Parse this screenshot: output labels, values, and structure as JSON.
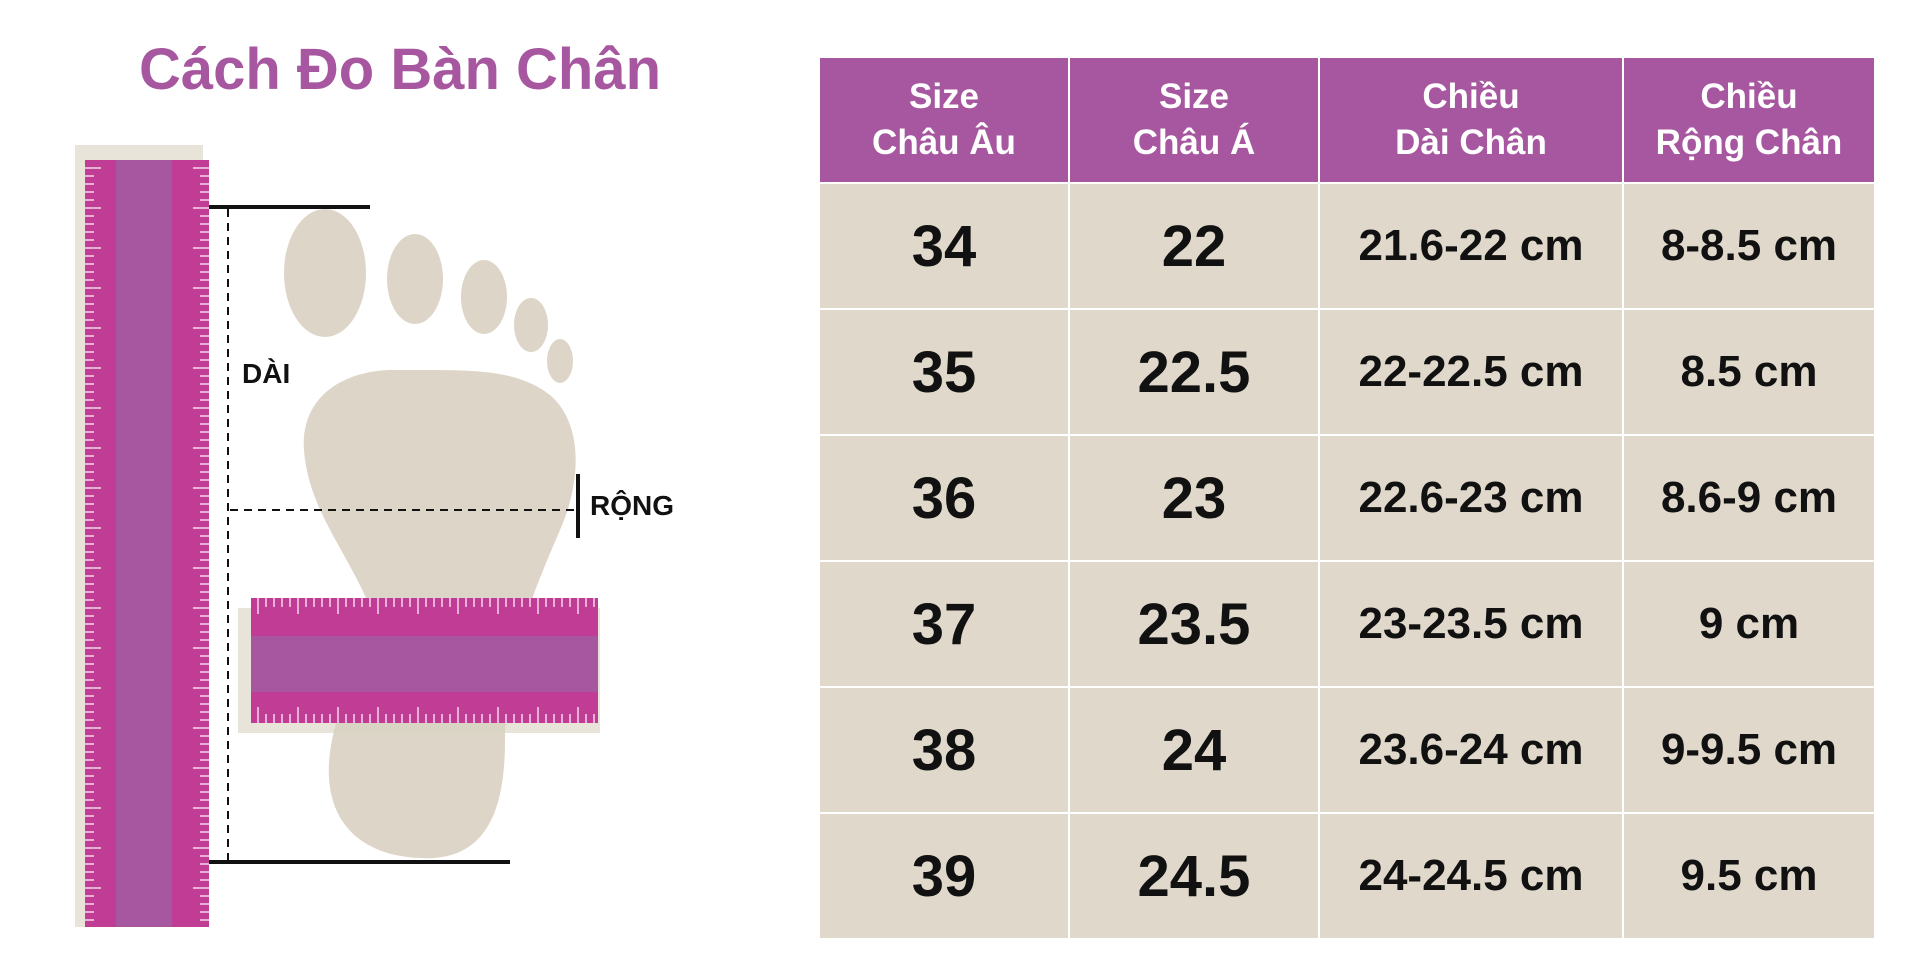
{
  "title": "Cách Đo Bàn Chân",
  "labels": {
    "length": "DÀI",
    "width": "RỘNG"
  },
  "colors": {
    "accent": "#a6579f",
    "ruler_magenta": "#c13d95",
    "foot": "#ddd6c8",
    "cell_bg": "#e0d9cb"
  },
  "table": {
    "headers": [
      {
        "line1": "Size",
        "line2": "Châu Âu"
      },
      {
        "line1": "Size",
        "line2": "Châu Á"
      },
      {
        "line1": "Chiều",
        "line2": "Dài Chân"
      },
      {
        "line1": "Chiều",
        "line2": "Rộng Chân"
      }
    ],
    "rows": [
      {
        "eu": "34",
        "asia": "22",
        "length": "21.6-22 cm",
        "width": "8-8.5 cm"
      },
      {
        "eu": "35",
        "asia": "22.5",
        "length": "22-22.5 cm",
        "width": "8.5 cm"
      },
      {
        "eu": "36",
        "asia": "23",
        "length": "22.6-23 cm",
        "width": "8.6-9 cm"
      },
      {
        "eu": "37",
        "asia": "23.5",
        "length": "23-23.5 cm",
        "width": "9 cm"
      },
      {
        "eu": "38",
        "asia": "24",
        "length": "23.6-24 cm",
        "width": "9-9.5 cm"
      },
      {
        "eu": "39",
        "asia": "24.5",
        "length": "24-24.5 cm",
        "width": "9.5 cm"
      }
    ]
  }
}
